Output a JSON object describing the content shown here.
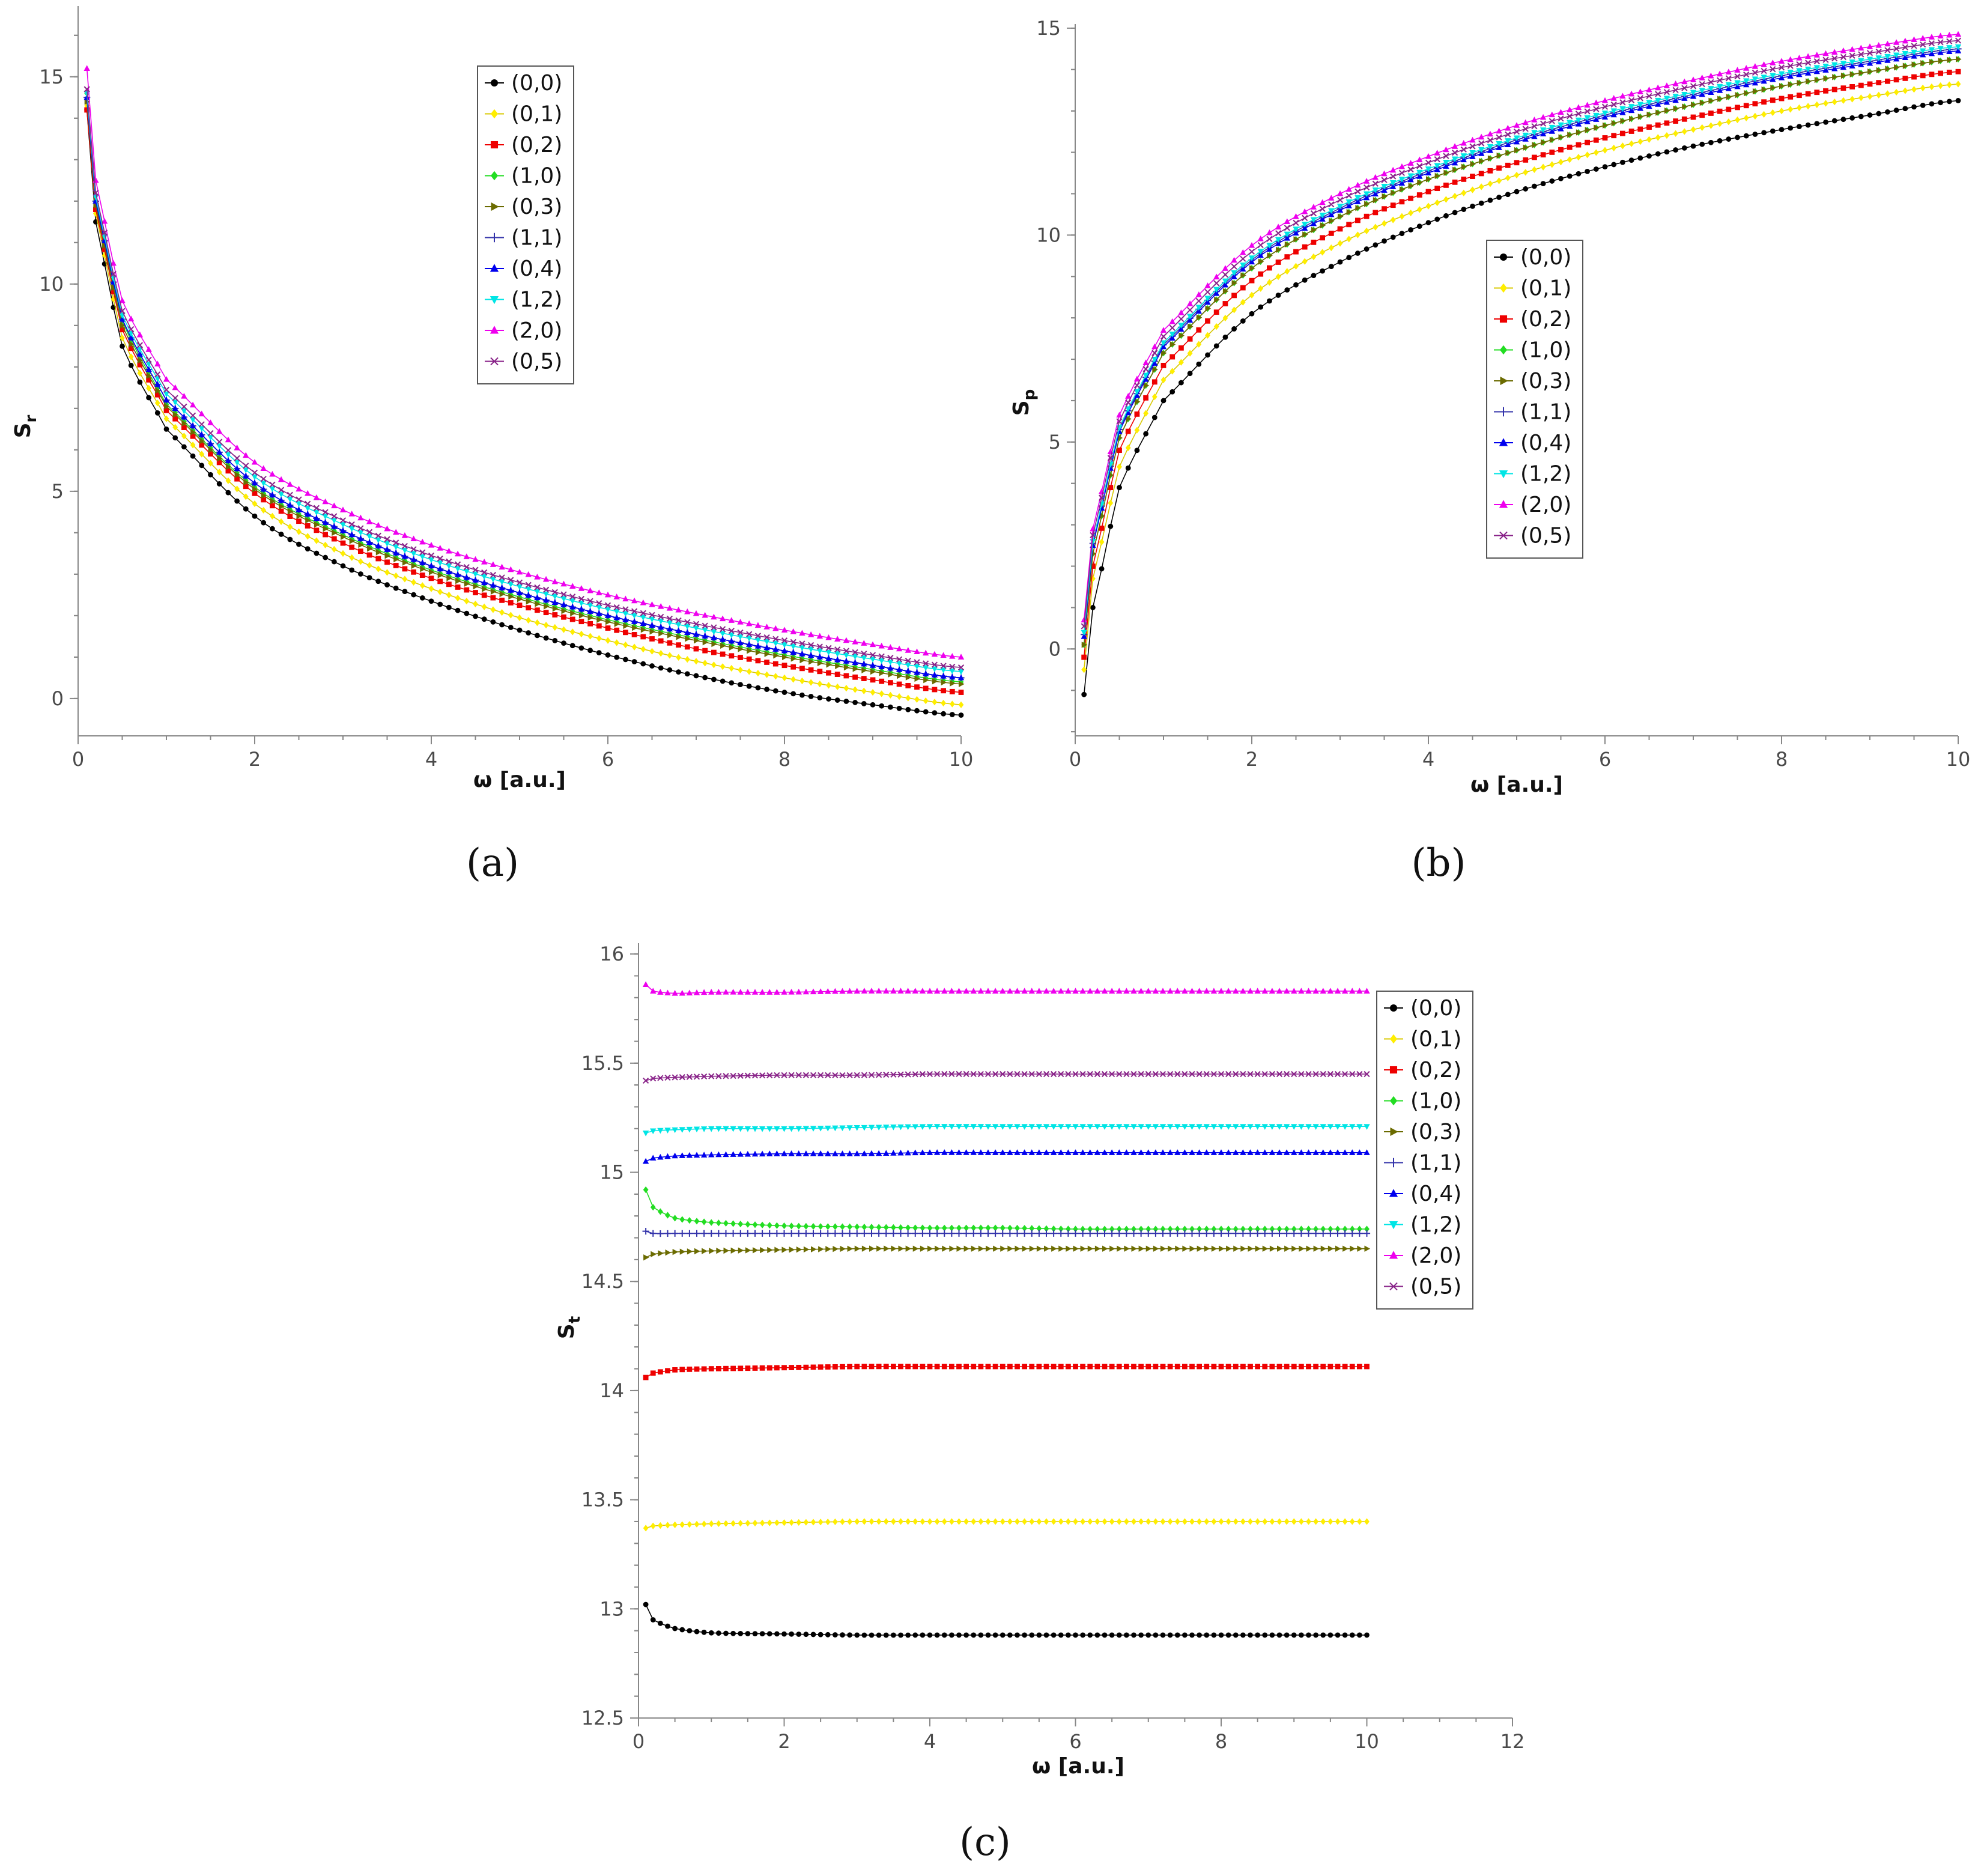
{
  "figure": {
    "panels": [
      "(a)",
      "(b)",
      "(c)"
    ]
  },
  "legend_entries": [
    "(0,0)",
    "(0,1)",
    "(0,2)",
    "(1,0)",
    "(0,3)",
    "(1,1)",
    "(0,4)",
    "(1,2)",
    "(2,0)",
    "(0,5)"
  ],
  "series_style": [
    {
      "color": "#000000",
      "marker": "circle"
    },
    {
      "color": "#ffee00",
      "marker": "diamond"
    },
    {
      "color": "#ee0000",
      "marker": "square"
    },
    {
      "color": "#22dd22",
      "marker": "diamond"
    },
    {
      "color": "#6b6b00",
      "marker": "tri-right"
    },
    {
      "color": "#3333aa",
      "marker": "plus"
    },
    {
      "color": "#0000ee",
      "marker": "tri-up"
    },
    {
      "color": "#00e5e5",
      "marker": "tri-down"
    },
    {
      "color": "#ee00ee",
      "marker": "tri-up"
    },
    {
      "color": "#882288",
      "marker": "cross"
    }
  ],
  "chart_data": [
    {
      "id": "a",
      "type": "line",
      "panel_label": "(a)",
      "xlabel": "ω [a.u.]",
      "ylabel": "S",
      "ylabel_sub": "r",
      "xlim": [
        0,
        10
      ],
      "ylim": [
        -0.9,
        16.2
      ],
      "xticks": [
        0,
        2,
        4,
        6,
        8,
        10
      ],
      "yticks": [
        0,
        5,
        10,
        15
      ],
      "x": [
        0.1,
        0.2,
        0.5,
        1,
        2,
        3,
        4,
        5,
        6,
        7,
        8,
        9,
        10
      ],
      "legend_position": "top-right",
      "series": [
        {
          "name": "(0,0)",
          "values": [
            14.2,
            11.5,
            8.5,
            6.5,
            4.4,
            3.2,
            2.35,
            1.65,
            1.05,
            0.55,
            0.15,
            -0.15,
            -0.4
          ]
        },
        {
          "name": "(0,1)",
          "values": [
            14.3,
            11.7,
            8.7,
            6.75,
            4.7,
            3.5,
            2.65,
            1.95,
            1.4,
            0.9,
            0.5,
            0.15,
            -0.15
          ]
        },
        {
          "name": "(0,2)",
          "values": [
            14.2,
            11.8,
            8.9,
            6.95,
            4.95,
            3.75,
            2.9,
            2.25,
            1.7,
            1.2,
            0.8,
            0.45,
            0.15
          ]
        },
        {
          "name": "(1,0)",
          "values": [
            14.6,
            12.0,
            9.1,
            7.1,
            5.1,
            3.95,
            3.1,
            2.45,
            1.9,
            1.45,
            1.05,
            0.7,
            0.4
          ]
        },
        {
          "name": "(0,3)",
          "values": [
            14.4,
            11.9,
            9.0,
            7.05,
            5.05,
            3.9,
            3.05,
            2.4,
            1.85,
            1.4,
            1.0,
            0.65,
            0.35
          ]
        },
        {
          "name": "(1,1)",
          "values": [
            14.5,
            12.0,
            9.15,
            7.2,
            5.2,
            4.05,
            3.2,
            2.55,
            2.0,
            1.55,
            1.15,
            0.8,
            0.5
          ]
        },
        {
          "name": "(0,4)",
          "values": [
            14.5,
            12.0,
            9.15,
            7.2,
            5.2,
            4.05,
            3.2,
            2.55,
            2.0,
            1.55,
            1.15,
            0.8,
            0.5
          ]
        },
        {
          "name": "(1,2)",
          "values": [
            14.6,
            12.1,
            9.25,
            7.35,
            5.35,
            4.2,
            3.35,
            2.7,
            2.15,
            1.7,
            1.3,
            0.95,
            0.65
          ]
        },
        {
          "name": "(2,0)",
          "values": [
            15.2,
            12.5,
            9.6,
            7.7,
            5.7,
            4.55,
            3.7,
            3.05,
            2.5,
            2.05,
            1.65,
            1.3,
            1.0
          ]
        },
        {
          "name": "(0,5)",
          "values": [
            14.7,
            12.2,
            9.35,
            7.45,
            5.45,
            4.3,
            3.45,
            2.8,
            2.25,
            1.8,
            1.4,
            1.05,
            0.75
          ]
        }
      ]
    },
    {
      "id": "b",
      "type": "line",
      "panel_label": "(b)",
      "xlabel": "ω [a.u.]",
      "ylabel": "S",
      "ylabel_sub": "p",
      "xlim": [
        0,
        10
      ],
      "ylim": [
        -2.1,
        15.1
      ],
      "xticks": [
        0,
        2,
        4,
        6,
        8,
        10
      ],
      "yticks": [
        0,
        5,
        10,
        15
      ],
      "x": [
        0.1,
        0.2,
        0.5,
        1,
        2,
        3,
        4,
        5,
        6,
        7,
        8,
        9,
        10
      ],
      "legend_position": "center",
      "series": [
        {
          "name": "(0,0)",
          "values": [
            -1.1,
            1.0,
            3.9,
            6.0,
            8.1,
            9.35,
            10.3,
            11.05,
            11.65,
            12.15,
            12.55,
            12.9,
            13.25
          ]
        },
        {
          "name": "(0,1)",
          "values": [
            -0.5,
            1.7,
            4.4,
            6.5,
            8.55,
            9.8,
            10.7,
            11.45,
            12.05,
            12.55,
            13.0,
            13.35,
            13.65
          ]
        },
        {
          "name": "(0,2)",
          "values": [
            -0.2,
            2.0,
            4.8,
            6.85,
            8.9,
            10.15,
            11.05,
            11.75,
            12.35,
            12.85,
            13.3,
            13.65,
            13.95
          ]
        },
        {
          "name": "(1,0)",
          "values": [
            0.1,
            2.3,
            5.1,
            7.15,
            9.2,
            10.45,
            11.35,
            12.05,
            12.65,
            13.15,
            13.6,
            13.95,
            14.25
          ]
        },
        {
          "name": "(0,3)",
          "values": [
            0.1,
            2.3,
            5.1,
            7.15,
            9.2,
            10.45,
            11.35,
            12.05,
            12.65,
            13.15,
            13.6,
            13.95,
            14.25
          ]
        },
        {
          "name": "(1,1)",
          "values": [
            0.35,
            2.55,
            5.3,
            7.35,
            9.4,
            10.65,
            11.55,
            12.3,
            12.9,
            13.4,
            13.85,
            14.2,
            14.5
          ]
        },
        {
          "name": "(0,4)",
          "values": [
            0.3,
            2.5,
            5.25,
            7.3,
            9.35,
            10.6,
            11.5,
            12.25,
            12.85,
            13.35,
            13.8,
            14.15,
            14.45
          ]
        },
        {
          "name": "(1,2)",
          "values": [
            0.4,
            2.6,
            5.35,
            7.4,
            9.45,
            10.7,
            11.6,
            12.35,
            12.95,
            13.45,
            13.9,
            14.25,
            14.55
          ]
        },
        {
          "name": "(2,0)",
          "values": [
            0.7,
            2.9,
            5.65,
            7.7,
            9.75,
            11.0,
            11.9,
            12.65,
            13.25,
            13.75,
            14.2,
            14.55,
            14.85
          ]
        },
        {
          "name": "(0,5)",
          "values": [
            0.55,
            2.75,
            5.5,
            7.55,
            9.6,
            10.85,
            11.75,
            12.5,
            13.1,
            13.6,
            14.05,
            14.4,
            14.7
          ]
        }
      ]
    },
    {
      "id": "c",
      "type": "line",
      "panel_label": "(c)",
      "xlabel": "ω [a.u.]",
      "ylabel": "S",
      "ylabel_sub": "t",
      "xlim": [
        0,
        12
      ],
      "ylim": [
        12.5,
        16.05
      ],
      "xticks": [
        0,
        2,
        4,
        6,
        8,
        10,
        12
      ],
      "yticks": [
        12.5,
        13,
        13.5,
        14,
        14.5,
        15,
        15.5,
        16
      ],
      "ytick_labels": [
        "12.5",
        "13",
        "13.5",
        "14",
        "14.5",
        "15",
        "15.5",
        "16"
      ],
      "x": [
        0.1,
        0.2,
        0.5,
        1,
        2,
        3,
        4,
        5,
        6,
        7,
        8,
        9,
        10
      ],
      "legend_position": "top-right",
      "series": [
        {
          "name": "(0,0)",
          "values": [
            13.02,
            12.95,
            12.91,
            12.89,
            12.885,
            12.88,
            12.88,
            12.88,
            12.88,
            12.88,
            12.88,
            12.88,
            12.88
          ]
        },
        {
          "name": "(0,1)",
          "values": [
            13.37,
            13.38,
            13.385,
            13.39,
            13.395,
            13.4,
            13.4,
            13.4,
            13.4,
            13.4,
            13.4,
            13.4,
            13.4
          ]
        },
        {
          "name": "(0,2)",
          "values": [
            14.06,
            14.08,
            14.095,
            14.1,
            14.105,
            14.11,
            14.11,
            14.11,
            14.11,
            14.11,
            14.11,
            14.11,
            14.11
          ]
        },
        {
          "name": "(1,0)",
          "values": [
            14.92,
            14.84,
            14.79,
            14.77,
            14.755,
            14.75,
            14.745,
            14.745,
            14.74,
            14.74,
            14.74,
            14.74,
            14.74
          ]
        },
        {
          "name": "(0,3)",
          "values": [
            14.61,
            14.625,
            14.635,
            14.64,
            14.645,
            14.65,
            14.65,
            14.65,
            14.65,
            14.65,
            14.65,
            14.65,
            14.65
          ]
        },
        {
          "name": "(1,1)",
          "values": [
            14.73,
            14.72,
            14.72,
            14.72,
            14.72,
            14.72,
            14.72,
            14.72,
            14.72,
            14.72,
            14.72,
            14.72,
            14.72
          ]
        },
        {
          "name": "(0,4)",
          "values": [
            15.05,
            15.065,
            15.075,
            15.08,
            15.085,
            15.085,
            15.09,
            15.09,
            15.09,
            15.09,
            15.09,
            15.09,
            15.09
          ]
        },
        {
          "name": "(1,2)",
          "values": [
            15.18,
            15.19,
            15.195,
            15.2,
            15.2,
            15.205,
            15.21,
            15.21,
            15.21,
            15.21,
            15.21,
            15.21,
            15.21
          ]
        },
        {
          "name": "(2,0)",
          "values": [
            15.86,
            15.83,
            15.82,
            15.825,
            15.825,
            15.83,
            15.83,
            15.83,
            15.83,
            15.83,
            15.83,
            15.83,
            15.83
          ]
        },
        {
          "name": "(0,5)",
          "values": [
            15.42,
            15.43,
            15.435,
            15.44,
            15.445,
            15.445,
            15.45,
            15.45,
            15.45,
            15.45,
            15.45,
            15.45,
            15.45
          ]
        }
      ]
    }
  ]
}
